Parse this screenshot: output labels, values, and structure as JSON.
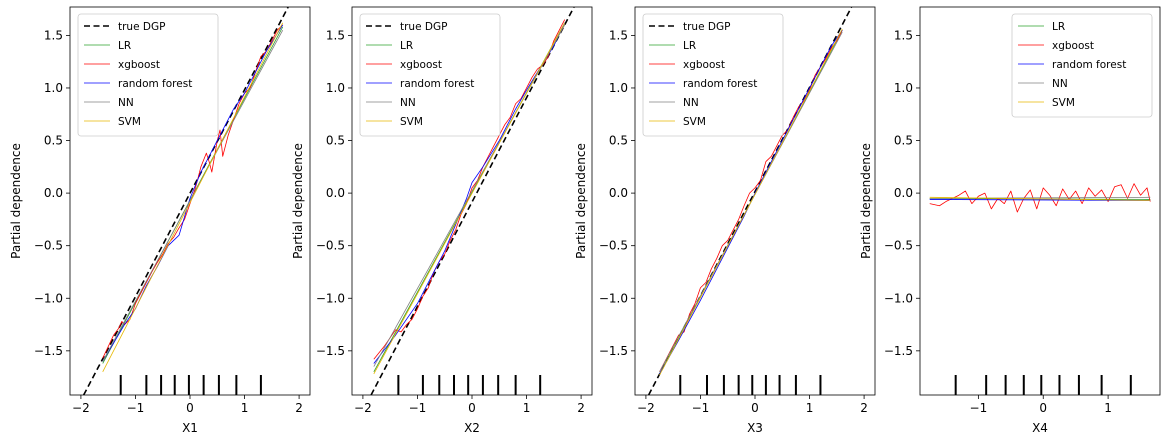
{
  "chart_data": [
    {
      "type": "line",
      "xlabel": "X1",
      "ylabel": "Partial dependence",
      "xlim": [
        -2.2,
        2.2
      ],
      "ylim": [
        -1.92,
        1.77
      ],
      "xticks": [
        -2,
        -1,
        0,
        1,
        2
      ],
      "xtick_labels": [
        "−2",
        "−1",
        "0",
        "1",
        "2"
      ],
      "yticks": [
        -1.5,
        -1.0,
        -0.5,
        0.0,
        0.5,
        1.0,
        1.5
      ],
      "ytick_labels": [
        "−1.5",
        "−1.0",
        "−0.5",
        "0.0",
        "0.5",
        "1.0",
        "1.5"
      ],
      "legend": "upper-left",
      "legend_entries": [
        "true DGP",
        "LR",
        "xgboost",
        "random forest",
        "NN",
        "SVM"
      ],
      "rug": [
        -1.27,
        -0.8,
        -0.53,
        -0.28,
        -0.02,
        0.25,
        0.53,
        0.85,
        1.3
      ],
      "series": [
        {
          "name": "true DGP",
          "color": "#000000",
          "style": "dashed",
          "x": [
            -1.95,
            1.8
          ],
          "y": [
            -1.92,
            1.77
          ]
        },
        {
          "name": "LR",
          "color": "#2ca02c",
          "x": [
            -1.6,
            1.7
          ],
          "y": [
            -1.62,
            1.58
          ]
        },
        {
          "name": "xgboost",
          "color": "#ff0000",
          "x": [
            -1.6,
            -1.4,
            -1.3,
            -1.25,
            -1.2,
            -1.1,
            -1.0,
            -0.9,
            -0.8,
            -0.7,
            -0.6,
            -0.5,
            -0.4,
            -0.3,
            -0.2,
            -0.1,
            0.0,
            0.1,
            0.2,
            0.3,
            0.35,
            0.4,
            0.5,
            0.55,
            0.6,
            0.7,
            0.8,
            0.9,
            1.0,
            1.1,
            1.2,
            1.3,
            1.4,
            1.5,
            1.6,
            1.7
          ],
          "y": [
            -1.57,
            -1.35,
            -1.28,
            -1.22,
            -1.25,
            -1.2,
            -1.05,
            -0.95,
            -0.85,
            -0.75,
            -0.66,
            -0.58,
            -0.48,
            -0.42,
            -0.33,
            -0.25,
            -0.1,
            0.05,
            0.25,
            0.38,
            0.3,
            0.2,
            0.5,
            0.6,
            0.35,
            0.55,
            0.7,
            0.85,
            0.95,
            1.0,
            1.15,
            1.3,
            1.35,
            1.45,
            1.55,
            1.6
          ]
        },
        {
          "name": "random forest",
          "color": "#0000ff",
          "x": [
            -1.6,
            -1.2,
            -1.0,
            -0.8,
            -0.6,
            -0.4,
            -0.2,
            0.0,
            0.2,
            0.4,
            0.6,
            0.8,
            1.0,
            1.2,
            1.4,
            1.7
          ],
          "y": [
            -1.6,
            -1.25,
            -1.1,
            -0.88,
            -0.7,
            -0.5,
            -0.4,
            -0.05,
            0.2,
            0.4,
            0.6,
            0.8,
            0.95,
            1.15,
            1.35,
            1.6
          ]
        },
        {
          "name": "NN",
          "color": "#808080",
          "x": [
            -1.6,
            1.7
          ],
          "y": [
            -1.6,
            1.55
          ]
        },
        {
          "name": "SVM",
          "color": "#e6b800",
          "x": [
            -1.6,
            1.7
          ],
          "y": [
            -1.7,
            1.62
          ]
        }
      ]
    },
    {
      "type": "line",
      "xlabel": "X2",
      "ylabel": "Partial dependence",
      "xlim": [
        -2.2,
        2.2
      ],
      "ylim": [
        -1.92,
        1.77
      ],
      "xticks": [
        -2,
        -1,
        0,
        1,
        2
      ],
      "xtick_labels": [
        "−2",
        "−1",
        "0",
        "1",
        "2"
      ],
      "yticks": [
        -1.5,
        -1.0,
        -0.5,
        0.0,
        0.5,
        1.0,
        1.5
      ],
      "ytick_labels": [
        "−1.5",
        "−1.0",
        "−0.5",
        "0.0",
        "0.5",
        "1.0",
        "1.5"
      ],
      "legend": "upper-left",
      "legend_entries": [
        "true DGP",
        "LR",
        "xgboost",
        "random forest",
        "NN",
        "SVM"
      ],
      "rug": [
        -1.35,
        -0.9,
        -0.6,
        -0.33,
        -0.07,
        0.2,
        0.48,
        0.8,
        1.25
      ],
      "series": [
        {
          "name": "true DGP",
          "color": "#000000",
          "style": "dashed",
          "x": [
            -1.85,
            1.87
          ],
          "y": [
            -1.92,
            1.77
          ]
        },
        {
          "name": "LR",
          "color": "#2ca02c",
          "x": [
            -1.8,
            1.7
          ],
          "y": [
            -1.7,
            1.62
          ]
        },
        {
          "name": "xgboost",
          "color": "#ff0000",
          "x": [
            -1.8,
            -1.6,
            -1.4,
            -1.3,
            -1.2,
            -1.1,
            -1.0,
            -0.9,
            -0.8,
            -0.7,
            -0.6,
            -0.5,
            -0.4,
            -0.3,
            -0.2,
            -0.1,
            0.0,
            0.1,
            0.2,
            0.3,
            0.4,
            0.5,
            0.6,
            0.7,
            0.8,
            0.9,
            1.0,
            1.1,
            1.2,
            1.3,
            1.4,
            1.5,
            1.6,
            1.7
          ],
          "y": [
            -1.58,
            -1.45,
            -1.3,
            -1.32,
            -1.25,
            -1.2,
            -1.1,
            -0.98,
            -0.9,
            -0.75,
            -0.65,
            -0.58,
            -0.45,
            -0.35,
            -0.2,
            -0.1,
            0.05,
            0.12,
            0.25,
            0.35,
            0.45,
            0.55,
            0.65,
            0.72,
            0.85,
            0.9,
            1.0,
            1.1,
            1.18,
            1.22,
            1.3,
            1.45,
            1.55,
            1.65
          ]
        },
        {
          "name": "random forest",
          "color": "#0000ff",
          "x": [
            -1.8,
            -1.4,
            -1.0,
            -0.8,
            -0.5,
            -0.3,
            -0.1,
            0.0,
            0.2,
            0.5,
            0.8,
            1.0,
            1.2,
            1.5,
            1.7
          ],
          "y": [
            -1.62,
            -1.35,
            -1.05,
            -0.85,
            -0.55,
            -0.3,
            -0.05,
            0.1,
            0.25,
            0.5,
            0.8,
            0.98,
            1.15,
            1.4,
            1.62
          ]
        },
        {
          "name": "NN",
          "color": "#808080",
          "x": [
            -1.8,
            1.7
          ],
          "y": [
            -1.65,
            1.6
          ]
        },
        {
          "name": "SVM",
          "color": "#e6b800",
          "x": [
            -1.8,
            1.7
          ],
          "y": [
            -1.72,
            1.62
          ]
        }
      ]
    },
    {
      "type": "line",
      "xlabel": "X3",
      "ylabel": "Partial dependence",
      "xlim": [
        -2.2,
        2.2
      ],
      "ylim": [
        -1.92,
        1.77
      ],
      "xticks": [
        -2,
        -1,
        0,
        1,
        2
      ],
      "xtick_labels": [
        "−2",
        "−1",
        "0",
        "1",
        "2"
      ],
      "yticks": [
        -1.5,
        -1.0,
        -0.5,
        0.0,
        0.5,
        1.0,
        1.5
      ],
      "ytick_labels": [
        "−1.5",
        "−1.0",
        "−0.5",
        "0.0",
        "0.5",
        "1.0",
        "1.5"
      ],
      "legend": "upper-left",
      "legend_entries": [
        "true DGP",
        "LR",
        "xgboost",
        "random forest",
        "NN",
        "SVM"
      ],
      "rug": [
        -1.37,
        -0.88,
        -0.57,
        -0.3,
        -0.05,
        0.2,
        0.45,
        0.75,
        1.2
      ],
      "series": [
        {
          "name": "true DGP",
          "color": "#000000",
          "style": "dashed",
          "x": [
            -1.95,
            1.77
          ],
          "y": [
            -1.92,
            1.77
          ]
        },
        {
          "name": "LR",
          "color": "#2ca02c",
          "x": [
            -1.75,
            1.6
          ],
          "y": [
            -1.72,
            1.55
          ]
        },
        {
          "name": "xgboost",
          "color": "#ff0000",
          "x": [
            -1.75,
            -1.6,
            -1.5,
            -1.4,
            -1.3,
            -1.2,
            -1.1,
            -1.0,
            -0.9,
            -0.8,
            -0.7,
            -0.6,
            -0.5,
            -0.4,
            -0.3,
            -0.2,
            -0.1,
            0.0,
            0.1,
            0.2,
            0.3,
            0.4,
            0.5,
            0.6,
            0.7,
            0.8,
            0.9,
            1.0,
            1.1,
            1.2,
            1.3,
            1.4,
            1.5,
            1.6
          ],
          "y": [
            -1.7,
            -1.55,
            -1.45,
            -1.35,
            -1.32,
            -1.15,
            -1.05,
            -0.9,
            -0.85,
            -0.72,
            -0.62,
            -0.5,
            -0.45,
            -0.35,
            -0.25,
            -0.12,
            0.0,
            0.05,
            0.12,
            0.3,
            0.35,
            0.45,
            0.55,
            0.6,
            0.72,
            0.82,
            0.88,
            0.98,
            1.12,
            1.2,
            1.28,
            1.38,
            1.45,
            1.55
          ]
        },
        {
          "name": "random forest",
          "color": "#0000ff",
          "x": [
            -1.75,
            -1.4,
            -1.0,
            -0.7,
            -0.4,
            -0.2,
            0.0,
            0.2,
            0.5,
            0.8,
            1.1,
            1.4,
            1.6
          ],
          "y": [
            -1.72,
            -1.4,
            -1.02,
            -0.72,
            -0.42,
            -0.22,
            0.0,
            0.2,
            0.5,
            0.8,
            1.1,
            1.4,
            1.55
          ]
        },
        {
          "name": "NN",
          "color": "#808080",
          "x": [
            -1.75,
            1.6
          ],
          "y": [
            -1.7,
            1.53
          ]
        },
        {
          "name": "SVM",
          "color": "#e6b800",
          "x": [
            -1.75,
            1.6
          ],
          "y": [
            -1.73,
            1.56
          ]
        }
      ]
    },
    {
      "type": "line",
      "xlabel": "X4",
      "ylabel": "Partial dependence",
      "xlim": [
        -1.9,
        1.8
      ],
      "ylim": [
        -1.92,
        1.77
      ],
      "xticks": [
        -1,
        0,
        1
      ],
      "xtick_labels": [
        "−1",
        "0",
        "1"
      ],
      "yticks": [
        -1.5,
        -1.0,
        -0.5,
        0.0,
        0.5,
        1.0,
        1.5
      ],
      "ytick_labels": [
        "−1.5",
        "−1.0",
        "−0.5",
        "0.0",
        "0.5",
        "1.0",
        "1.5"
      ],
      "legend": "upper-right",
      "legend_entries": [
        "LR",
        "xgboost",
        "random forest",
        "NN",
        "SVM"
      ],
      "rug": [
        -1.35,
        -0.88,
        -0.58,
        -0.3,
        -0.03,
        0.25,
        0.55,
        0.9,
        1.35
      ],
      "series": [
        {
          "name": "LR",
          "color": "#2ca02c",
          "x": [
            -1.75,
            1.65
          ],
          "y": [
            -0.05,
            -0.06
          ]
        },
        {
          "name": "xgboost",
          "color": "#ff0000",
          "x": [
            -1.75,
            -1.6,
            -1.5,
            -1.4,
            -1.3,
            -1.2,
            -1.1,
            -1.0,
            -0.9,
            -0.8,
            -0.7,
            -0.6,
            -0.5,
            -0.4,
            -0.3,
            -0.2,
            -0.1,
            0.0,
            0.1,
            0.2,
            0.3,
            0.4,
            0.5,
            0.6,
            0.7,
            0.8,
            0.9,
            1.0,
            1.1,
            1.2,
            1.3,
            1.4,
            1.5,
            1.6,
            1.65
          ],
          "y": [
            -0.1,
            -0.12,
            -0.08,
            -0.05,
            -0.02,
            0.02,
            -0.1,
            -0.03,
            0.0,
            -0.15,
            -0.05,
            -0.1,
            0.02,
            -0.18,
            -0.05,
            0.03,
            -0.15,
            0.05,
            -0.02,
            -0.12,
            0.04,
            -0.06,
            0.02,
            -0.1,
            0.05,
            -0.03,
            0.03,
            -0.08,
            0.06,
            0.08,
            -0.05,
            0.09,
            -0.02,
            0.05,
            -0.08
          ]
        },
        {
          "name": "random forest",
          "color": "#0000ff",
          "x": [
            -1.75,
            1.65
          ],
          "y": [
            -0.06,
            -0.07
          ]
        },
        {
          "name": "NN",
          "color": "#808080",
          "x": [
            -1.75,
            1.65
          ],
          "y": [
            -0.05,
            -0.04
          ]
        },
        {
          "name": "SVM",
          "color": "#e6b800",
          "x": [
            -1.75,
            1.65
          ],
          "y": [
            -0.04,
            -0.07
          ]
        }
      ]
    }
  ]
}
